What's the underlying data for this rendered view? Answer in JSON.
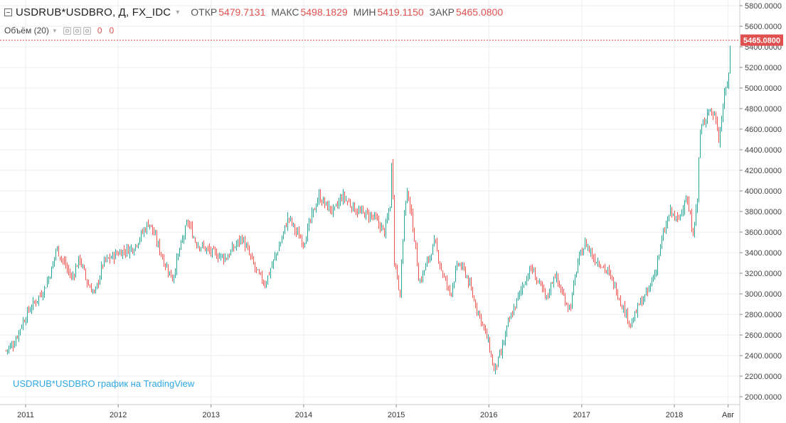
{
  "header": {
    "symbol": "USDRUB*USDBRO, Д, FX_IDC",
    "open_label": "ОТКР",
    "open_value": "5479.7131",
    "high_label": "МАКС",
    "high_value": "5498.1829",
    "low_label": "МИН",
    "low_value": "5419.1150",
    "close_label": "ЗАКР",
    "close_value": "5465.0800"
  },
  "volume": {
    "label": "Объём (20)",
    "value1": "0",
    "value2": "0"
  },
  "watermark": "USDRUB*USDBRO график на TradingView",
  "price_axis": {
    "ticks": [
      "5800.0000",
      "5600.0000",
      "5400.0000",
      "5200.0000",
      "5000.0000",
      "4800.0000",
      "4600.0000",
      "4400.0000",
      "4200.0000",
      "4000.0000",
      "3800.0000",
      "3600.0000",
      "3400.0000",
      "3200.0000",
      "3000.0000",
      "2800.0000",
      "2600.0000",
      "2400.0000",
      "2200.0000",
      "2000.0000"
    ],
    "current_price": "5465.0800"
  },
  "time_axis": {
    "ticks": [
      "2011",
      "2012",
      "2013",
      "2014",
      "2015",
      "2016",
      "2017",
      "2018",
      "Авг"
    ]
  },
  "colors": {
    "up": "#26a69a",
    "down": "#ef5350",
    "accent": "#e0504e",
    "grid": "#e9eef2"
  },
  "chart_data": {
    "type": "candlestick",
    "interval": "Д",
    "ylim": [
      2000,
      5800
    ],
    "x_ticks": [
      "2011",
      "2012",
      "2013",
      "2014",
      "2015",
      "2016",
      "2017",
      "2018",
      "Авг"
    ],
    "last_close": 5465.08,
    "path": [
      [
        "2010-10-15",
        2450
      ],
      [
        "2010-11-15",
        2520
      ],
      [
        "2010-12-15",
        2700
      ],
      [
        "2011-01-15",
        2850
      ],
      [
        "2011-02-15",
        2950
      ],
      [
        "2011-03-15",
        3050
      ],
      [
        "2011-04-15",
        3250
      ],
      [
        "2011-05-01",
        3450
      ],
      [
        "2011-06-01",
        3300
      ],
      [
        "2011-07-01",
        3150
      ],
      [
        "2011-08-01",
        3350
      ],
      [
        "2011-09-01",
        3100
      ],
      [
        "2011-10-01",
        3000
      ],
      [
        "2011-11-01",
        3300
      ],
      [
        "2011-12-01",
        3350
      ],
      [
        "2012-01-01",
        3400
      ],
      [
        "2012-03-01",
        3450
      ],
      [
        "2012-05-01",
        3700
      ],
      [
        "2012-06-01",
        3500
      ],
      [
        "2012-07-01",
        3300
      ],
      [
        "2012-08-01",
        3150
      ],
      [
        "2012-09-01",
        3450
      ],
      [
        "2012-10-01",
        3700
      ],
      [
        "2012-11-01",
        3500
      ],
      [
        "2013-01-01",
        3400
      ],
      [
        "2013-03-01",
        3350
      ],
      [
        "2013-05-01",
        3550
      ],
      [
        "2013-07-01",
        3200
      ],
      [
        "2013-08-01",
        3100
      ],
      [
        "2013-09-01",
        3300
      ],
      [
        "2013-10-01",
        3500
      ],
      [
        "2013-11-01",
        3750
      ],
      [
        "2013-12-01",
        3600
      ],
      [
        "2014-01-01",
        3500
      ],
      [
        "2014-02-01",
        3750
      ],
      [
        "2014-03-01",
        3950
      ],
      [
        "2014-04-01",
        3850
      ],
      [
        "2014-05-01",
        3800
      ],
      [
        "2014-06-01",
        3950
      ],
      [
        "2014-08-01",
        3800
      ],
      [
        "2014-10-01",
        3750
      ],
      [
        "2014-11-15",
        3600
      ],
      [
        "2014-12-10",
        3900
      ],
      [
        "2014-12-16",
        4700
      ],
      [
        "2014-12-20",
        3400
      ],
      [
        "2015-01-15",
        3000
      ],
      [
        "2015-02-01",
        3800
      ],
      [
        "2015-02-15",
        4000
      ],
      [
        "2015-03-15",
        3500
      ],
      [
        "2015-04-01",
        3100
      ],
      [
        "2015-05-01",
        3300
      ],
      [
        "2015-06-01",
        3500
      ],
      [
        "2015-07-01",
        3200
      ],
      [
        "2015-08-01",
        3000
      ],
      [
        "2015-09-01",
        3300
      ],
      [
        "2015-10-01",
        3200
      ],
      [
        "2015-11-01",
        2950
      ],
      [
        "2015-12-01",
        2750
      ],
      [
        "2016-01-01",
        2500
      ],
      [
        "2016-01-20",
        2250
      ],
      [
        "2016-02-15",
        2400
      ],
      [
        "2016-03-15",
        2700
      ],
      [
        "2016-04-15",
        2900
      ],
      [
        "2016-05-15",
        3100
      ],
      [
        "2016-06-15",
        3250
      ],
      [
        "2016-07-15",
        3100
      ],
      [
        "2016-08-15",
        2950
      ],
      [
        "2016-09-15",
        3200
      ],
      [
        "2016-10-15",
        3000
      ],
      [
        "2016-11-15",
        2850
      ],
      [
        "2016-12-15",
        3300
      ],
      [
        "2017-01-15",
        3500
      ],
      [
        "2017-02-15",
        3350
      ],
      [
        "2017-03-15",
        3300
      ],
      [
        "2017-04-15",
        3200
      ],
      [
        "2017-05-15",
        3050
      ],
      [
        "2017-06-15",
        2850
      ],
      [
        "2017-07-15",
        2700
      ],
      [
        "2017-08-15",
        2900
      ],
      [
        "2017-09-15",
        3000
      ],
      [
        "2017-10-15",
        3200
      ],
      [
        "2017-11-15",
        3550
      ],
      [
        "2017-12-15",
        3800
      ],
      [
        "2018-01-15",
        3700
      ],
      [
        "2018-02-15",
        3950
      ],
      [
        "2018-03-15",
        3600
      ],
      [
        "2018-04-01",
        3900
      ],
      [
        "2018-04-10",
        4550
      ],
      [
        "2018-05-15",
        4800
      ],
      [
        "2018-06-15",
        4700
      ],
      [
        "2018-06-25",
        4500
      ],
      [
        "2018-07-15",
        4900
      ],
      [
        "2018-08-01",
        5100
      ],
      [
        "2018-08-10",
        5465
      ]
    ]
  }
}
